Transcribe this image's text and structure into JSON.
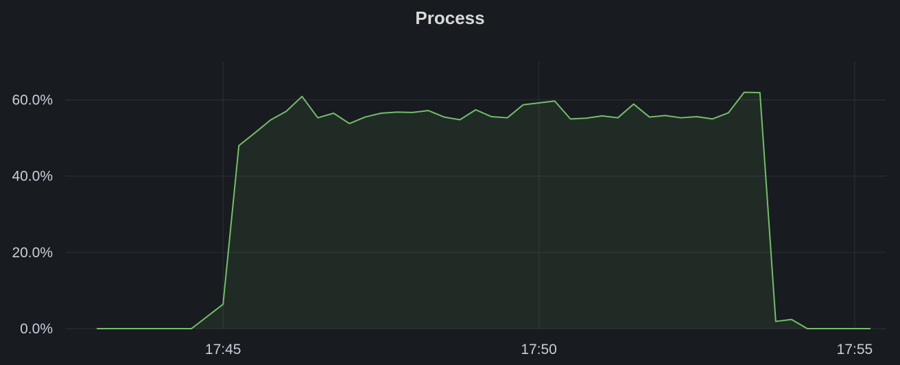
{
  "panel": {
    "title": "Process"
  },
  "chart_data": {
    "type": "area",
    "title": "Process",
    "xlabel": "",
    "ylabel": "",
    "x_unit": "minutes",
    "x_range": [
      "17:42:30",
      "17:55:30"
    ],
    "ylim": [
      0,
      0.7
    ],
    "y_format": "percent_1dp",
    "grid": true,
    "y_ticks": [
      {
        "value": 0.0,
        "label": "0.0%"
      },
      {
        "value": 0.2,
        "label": "20.0%"
      },
      {
        "value": 0.4,
        "label": "40.0%"
      },
      {
        "value": 0.6,
        "label": "60.0%"
      }
    ],
    "x_ticks": [
      {
        "value": "17:45",
        "label": "17:45"
      },
      {
        "value": "17:50",
        "label": "17:50"
      },
      {
        "value": "17:55",
        "label": "17:55"
      }
    ],
    "colors": {
      "line": "#73bf69",
      "fill": "#73bf69",
      "fill_opacity": 0.1,
      "grid": "#2e3036",
      "background": "#181b1f",
      "text": "#ccccdc"
    },
    "series": [
      {
        "x": [
          "17:43:00",
          "17:43:30",
          "17:44:00",
          "17:44:30",
          "17:45:00",
          "17:45:15",
          "17:45:30",
          "17:45:45",
          "17:46:00",
          "17:46:15",
          "17:46:30",
          "17:46:45",
          "17:47:00",
          "17:47:15",
          "17:47:30",
          "17:47:45",
          "17:48:00",
          "17:48:15",
          "17:48:30",
          "17:48:45",
          "17:49:00",
          "17:49:15",
          "17:49:30",
          "17:49:45",
          "17:50:00",
          "17:50:15",
          "17:50:30",
          "17:50:45",
          "17:51:00",
          "17:51:15",
          "17:51:30",
          "17:51:45",
          "17:52:00",
          "17:52:15",
          "17:52:30",
          "17:52:45",
          "17:53:00",
          "17:53:15",
          "17:53:30",
          "17:53:45",
          "17:54:00",
          "17:54:15",
          "17:54:30",
          "17:54:45",
          "17:55:00",
          "17:55:15"
        ],
        "values": [
          0.0,
          0.0,
          0.0,
          0.0,
          0.064,
          0.48,
          0.513,
          0.547,
          0.57,
          0.609,
          0.553,
          0.565,
          0.538,
          0.555,
          0.565,
          0.568,
          0.567,
          0.572,
          0.555,
          0.548,
          0.574,
          0.556,
          0.553,
          0.587,
          0.592,
          0.597,
          0.55,
          0.552,
          0.558,
          0.553,
          0.589,
          0.555,
          0.559,
          0.553,
          0.556,
          0.55,
          0.566,
          0.62,
          0.619,
          0.019,
          0.024,
          0.0,
          0.0,
          0.0,
          0.0,
          0.0
        ]
      }
    ]
  }
}
